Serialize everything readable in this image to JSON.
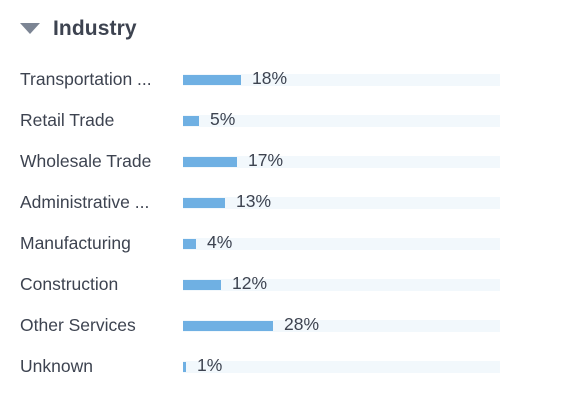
{
  "section": {
    "title": "Industry",
    "expanded": true,
    "caret_icon": "caret-down-icon"
  },
  "colors": {
    "bar_fill": "#6fb0e3",
    "bar_track": "#f2f8fc",
    "text": "#3d4350"
  },
  "industries": [
    {
      "label": "Transportation ...",
      "percent_label": "18%",
      "value": 18
    },
    {
      "label": "Retail Trade",
      "percent_label": "5%",
      "value": 5
    },
    {
      "label": "Wholesale Trade",
      "percent_label": "17%",
      "value": 17
    },
    {
      "label": "Administrative ...",
      "percent_label": "13%",
      "value": 13
    },
    {
      "label": "Manufacturing",
      "percent_label": "4%",
      "value": 4
    },
    {
      "label": "Construction",
      "percent_label": "12%",
      "value": 12
    },
    {
      "label": "Other Services",
      "percent_label": "28%",
      "value": 28
    },
    {
      "label": "Unknown",
      "percent_label": "1%",
      "value": 1
    }
  ]
}
